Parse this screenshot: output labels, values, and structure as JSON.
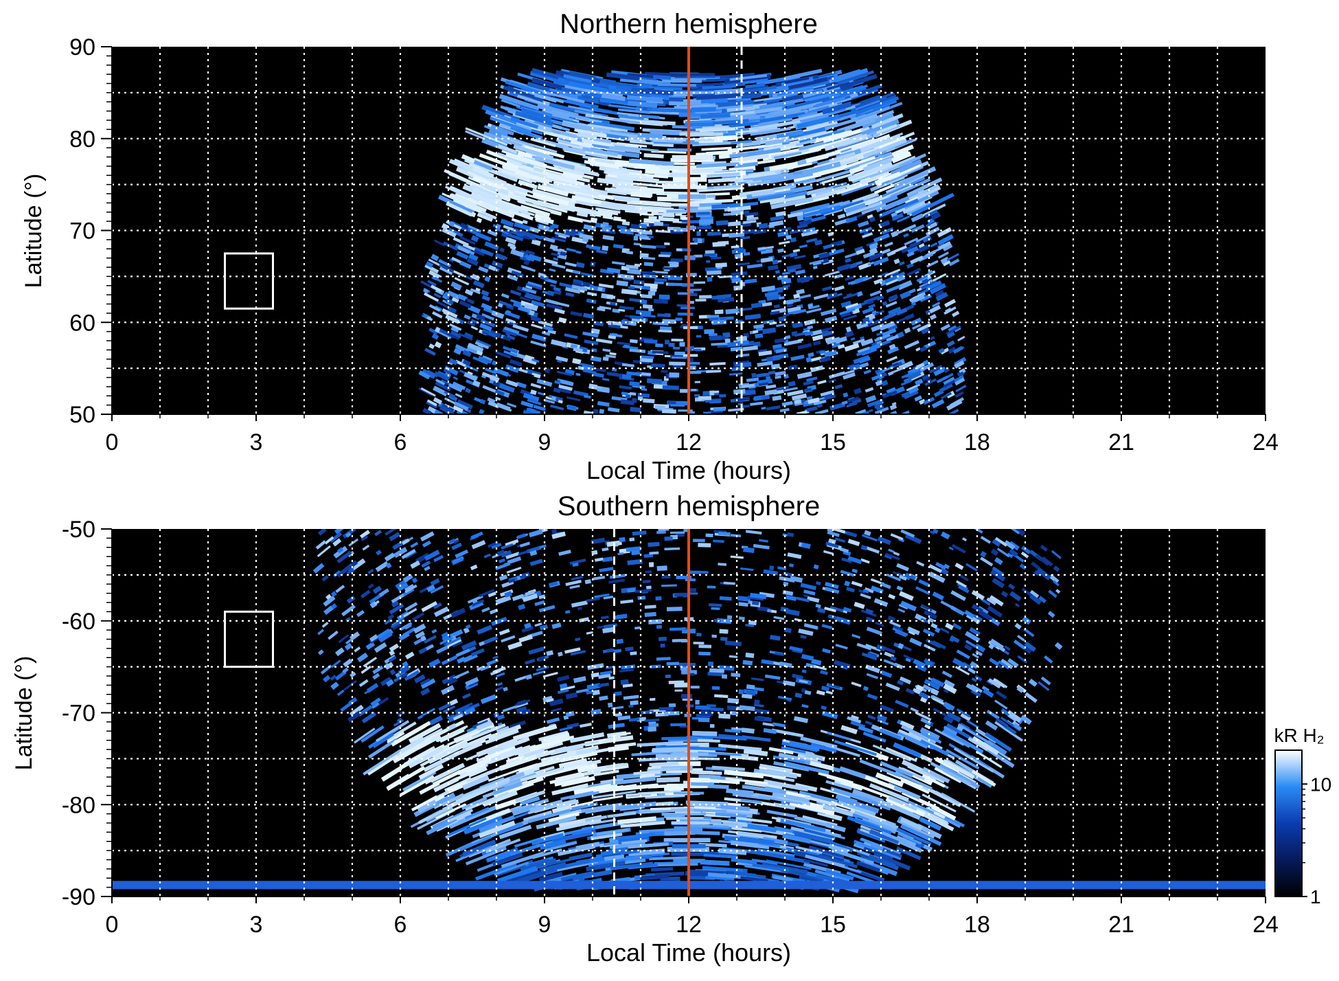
{
  "chart_data": [
    {
      "type": "heatmap",
      "title": "Northern hemisphere",
      "xlabel": "Local Time (hours)",
      "ylabel": "Latitude (°)",
      "xlim": [
        0,
        24
      ],
      "ylim": [
        50,
        90
      ],
      "x_ticks": [
        "0",
        "3",
        "6",
        "9",
        "12",
        "15",
        "18",
        "21",
        "24"
      ],
      "y_ticks": [
        "50",
        "60",
        "70",
        "80",
        "90"
      ],
      "grid": true,
      "colormap": "black-blue-white",
      "colors": {
        "background": "#000000",
        "low": "#0a2b86",
        "mid": "#1f78ef",
        "high": "#e7f7ff",
        "noon_line": "#e84a14"
      },
      "coverage": {
        "lt_min": 6.5,
        "lt_max": 17.7,
        "lat_max": 87
      },
      "auroral_oval": {
        "lat_center": 77,
        "bright_arc_lt": [
          7.2,
          12.0
        ],
        "bright_arc_lat": [
          71,
          77
        ]
      },
      "reference_lines": [
        {
          "lt": 12,
          "style": "solid",
          "color": "#e84a14"
        },
        {
          "lt": 13.1,
          "style": "dashed",
          "color": "#ffffff"
        }
      ],
      "box": {
        "lt": [
          2.35,
          3.35
        ],
        "lat": [
          61.5,
          67.5
        ]
      }
    },
    {
      "type": "heatmap",
      "title": "Southern hemisphere",
      "xlabel": "Local Time (hours)",
      "ylabel": "Latitude (°)",
      "xlim": [
        0,
        24
      ],
      "ylim": [
        -90,
        -50
      ],
      "x_ticks": [
        "0",
        "3",
        "6",
        "9",
        "12",
        "15",
        "18",
        "21",
        "24"
      ],
      "y_ticks": [
        "-50",
        "-60",
        "-70",
        "-80",
        "-90"
      ],
      "grid": true,
      "colormap": "black-blue-white",
      "colors": {
        "background": "#000000",
        "low": "#0a2b86",
        "mid": "#1f78ef",
        "high": "#e7f7ff",
        "noon_line": "#e84a14"
      },
      "coverage": {
        "lt_min": 4.3,
        "lt_max": 19.7,
        "lat_min": -89
      },
      "auroral_oval": {
        "lat_center": -78,
        "bright_arc_lt": [
          5.9,
          10.8
        ],
        "bright_arc_lat": [
          -77,
          -72
        ]
      },
      "reference_lines": [
        {
          "lt": 12,
          "style": "solid",
          "color": "#e84a14"
        },
        {
          "lt": 10.45,
          "style": "dashed",
          "color": "#ffffff"
        }
      ],
      "box": {
        "lt": [
          2.35,
          3.35
        ],
        "lat": [
          -65,
          -59
        ]
      }
    }
  ],
  "colorbar": {
    "title": "kR H₂",
    "ticks": [
      "10",
      "1"
    ],
    "scale": "log",
    "range": [
      1,
      20
    ]
  }
}
